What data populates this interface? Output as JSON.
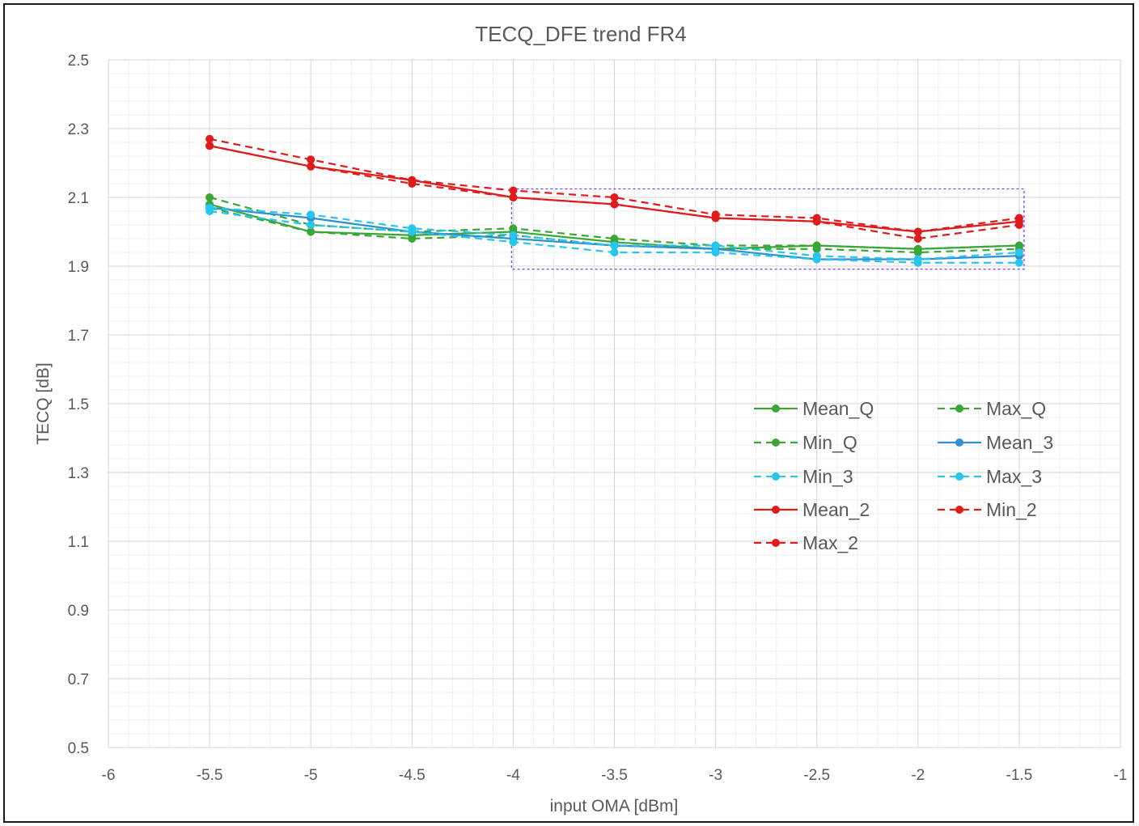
{
  "chart_data": {
    "type": "line",
    "title": "TECQ_DFE trend FR4",
    "xlabel": "input OMA [dBm]",
    "ylabel": "TECQ [dB]",
    "xlim": [
      -6,
      -1
    ],
    "ylim": [
      0.5,
      2.5
    ],
    "xticks": [
      "-6",
      "-5.5",
      "-5",
      "-4.5",
      "-4",
      "-3.5",
      "-3",
      "-2.5",
      "-2",
      "-1.5",
      "-1"
    ],
    "yticks": [
      "0.5",
      "0.7",
      "0.9",
      "1.1",
      "1.3",
      "1.5",
      "1.7",
      "1.9",
      "2.1",
      "2.3",
      "2.5"
    ],
    "grid": "major and minor",
    "legend_position": "right, inside plot area",
    "x": [
      -5.5,
      -5,
      -4.5,
      -4,
      -3.5,
      -3,
      -2.5,
      -2,
      -1.5
    ],
    "series": [
      {
        "name": "Mean_Q",
        "color": "#3aa637",
        "style": "solid",
        "values": [
          2.08,
          2.0,
          1.99,
          2.0,
          1.97,
          1.95,
          1.96,
          1.95,
          1.96
        ]
      },
      {
        "name": "Max_Q",
        "color": "#3aa637",
        "style": "dashed",
        "values": [
          2.1,
          2.02,
          2.0,
          2.01,
          1.98,
          1.96,
          1.96,
          1.95,
          1.96
        ]
      },
      {
        "name": "Min_Q",
        "color": "#3aa637",
        "style": "dashed",
        "values": [
          2.07,
          2.0,
          1.98,
          1.99,
          1.96,
          1.95,
          1.95,
          1.94,
          1.95
        ]
      },
      {
        "name": "Mean_3",
        "color": "#2e8fd1",
        "style": "solid",
        "values": [
          2.07,
          2.04,
          2.0,
          1.98,
          1.96,
          1.95,
          1.92,
          1.92,
          1.93
        ]
      },
      {
        "name": "Min_3",
        "color": "#27c6ef",
        "style": "dashed",
        "values": [
          2.06,
          2.02,
          2.0,
          1.97,
          1.94,
          1.94,
          1.92,
          1.91,
          1.91
        ]
      },
      {
        "name": "Max_3",
        "color": "#27c6ef",
        "style": "dashed",
        "values": [
          2.07,
          2.05,
          2.01,
          1.99,
          1.96,
          1.96,
          1.93,
          1.92,
          1.94
        ]
      },
      {
        "name": "Mean_2",
        "color": "#e01b1b",
        "style": "solid",
        "values": [
          2.25,
          2.19,
          2.15,
          2.1,
          2.08,
          2.04,
          2.03,
          2.0,
          2.03
        ]
      },
      {
        "name": "Min_2",
        "color": "#e01b1b",
        "style": "dashed",
        "values": [
          2.25,
          2.19,
          2.14,
          2.1,
          2.08,
          2.04,
          2.03,
          1.98,
          2.02
        ]
      },
      {
        "name": "Max_2",
        "color": "#e01b1b",
        "style": "dashed",
        "values": [
          2.27,
          2.21,
          2.15,
          2.12,
          2.1,
          2.05,
          2.04,
          2.0,
          2.04
        ]
      }
    ],
    "legend_order": [
      "Mean_Q",
      "Max_Q",
      "Min_Q",
      "Mean_3",
      "Min_3",
      "Max_3",
      "Mean_2",
      "Min_2",
      "Max_2"
    ],
    "highlight_box": {
      "x_range": [
        -4,
        -1.5
      ],
      "y_range": [
        1.91,
        2.12
      ],
      "color": "#7a3cff",
      "style": "dotted"
    }
  }
}
